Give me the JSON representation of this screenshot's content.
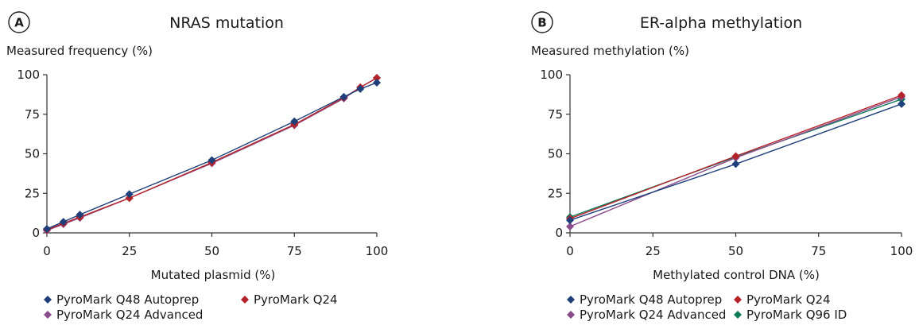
{
  "colors": {
    "q48": "#1f3f7a",
    "q24": "#b5232a",
    "q24adv": "#8a4b8a",
    "q96": "#0e7a5a",
    "axis": "#333333"
  },
  "chart_data": [
    {
      "type": "line",
      "panel_label": "A",
      "title": "NRAS mutation",
      "ylabel": "Measured frequency (%)",
      "xlabel": "Mutated plasmid (%)",
      "xlim": [
        0,
        100
      ],
      "ylim": [
        0,
        100
      ],
      "xticks": [
        "0",
        "25",
        "50",
        "75",
        "100"
      ],
      "yticks": [
        "0",
        "25",
        "50",
        "75",
        "100"
      ],
      "legend": "bottom",
      "series": [
        {
          "name": "PyroMark Q48 Autoprep",
          "color_key": "q48",
          "x": [
            0,
            5,
            10,
            25,
            50,
            75,
            90,
            95,
            100
          ],
          "y": [
            2.5,
            7,
            11.5,
            24.5,
            46,
            70.5,
            86,
            91,
            95
          ]
        },
        {
          "name": "PyroMark Q24",
          "color_key": "q24",
          "x": [
            0,
            5,
            10,
            25,
            50,
            75,
            90,
            95,
            100
          ],
          "y": [
            2,
            6,
            10,
            22,
            44.5,
            68.5,
            85.5,
            92,
            98
          ]
        },
        {
          "name": "PyroMark Q24 Advanced",
          "color_key": "q24adv",
          "x": [
            0,
            5,
            10,
            25,
            50,
            75,
            90,
            95,
            100
          ],
          "y": [
            1.5,
            5.5,
            9.5,
            22,
            44,
            68,
            85,
            92,
            98
          ]
        }
      ]
    },
    {
      "type": "line",
      "panel_label": "B",
      "title": "ER-alpha methylation",
      "ylabel": "Measured methylation (%)",
      "xlabel": "Methylated control DNA (%)",
      "xlim": [
        0,
        100
      ],
      "ylim": [
        0,
        100
      ],
      "xticks": [
        "0",
        "25",
        "50",
        "75",
        "100"
      ],
      "yticks": [
        "0",
        "25",
        "50",
        "75",
        "100"
      ],
      "legend": "bottom",
      "series": [
        {
          "name": "PyroMark Q48 Autoprep",
          "color_key": "q48",
          "x": [
            0,
            50,
            100
          ],
          "y": [
            8,
            43.5,
            81.5
          ]
        },
        {
          "name": "PyroMark Q24",
          "color_key": "q24",
          "x": [
            0,
            50,
            100
          ],
          "y": [
            9,
            48.5,
            87
          ]
        },
        {
          "name": "PyroMark Q24 Advanced",
          "color_key": "q24adv",
          "x": [
            0,
            50,
            100
          ],
          "y": [
            4,
            47.5,
            86
          ]
        },
        {
          "name": "PyroMark Q96 ID",
          "color_key": "q96",
          "x": [
            0,
            50,
            100
          ],
          "y": [
            10,
            48,
            84.5
          ]
        }
      ]
    }
  ]
}
